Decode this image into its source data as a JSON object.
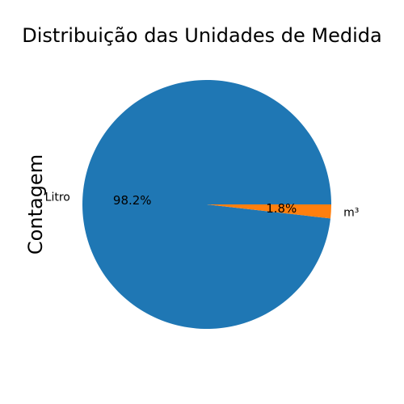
{
  "chart_data": {
    "type": "pie",
    "title": "Distribuição das Unidades de Medida",
    "ylabel": "Contagem",
    "categories": [
      "Litro",
      "m³"
    ],
    "values": [
      98.2,
      1.8
    ],
    "value_labels": [
      "98.2%",
      "1.8%"
    ],
    "colors": [
      "#1f77b4",
      "#ff7f0e"
    ],
    "start_angle_deg": 0,
    "direction": "counterclockwise"
  }
}
